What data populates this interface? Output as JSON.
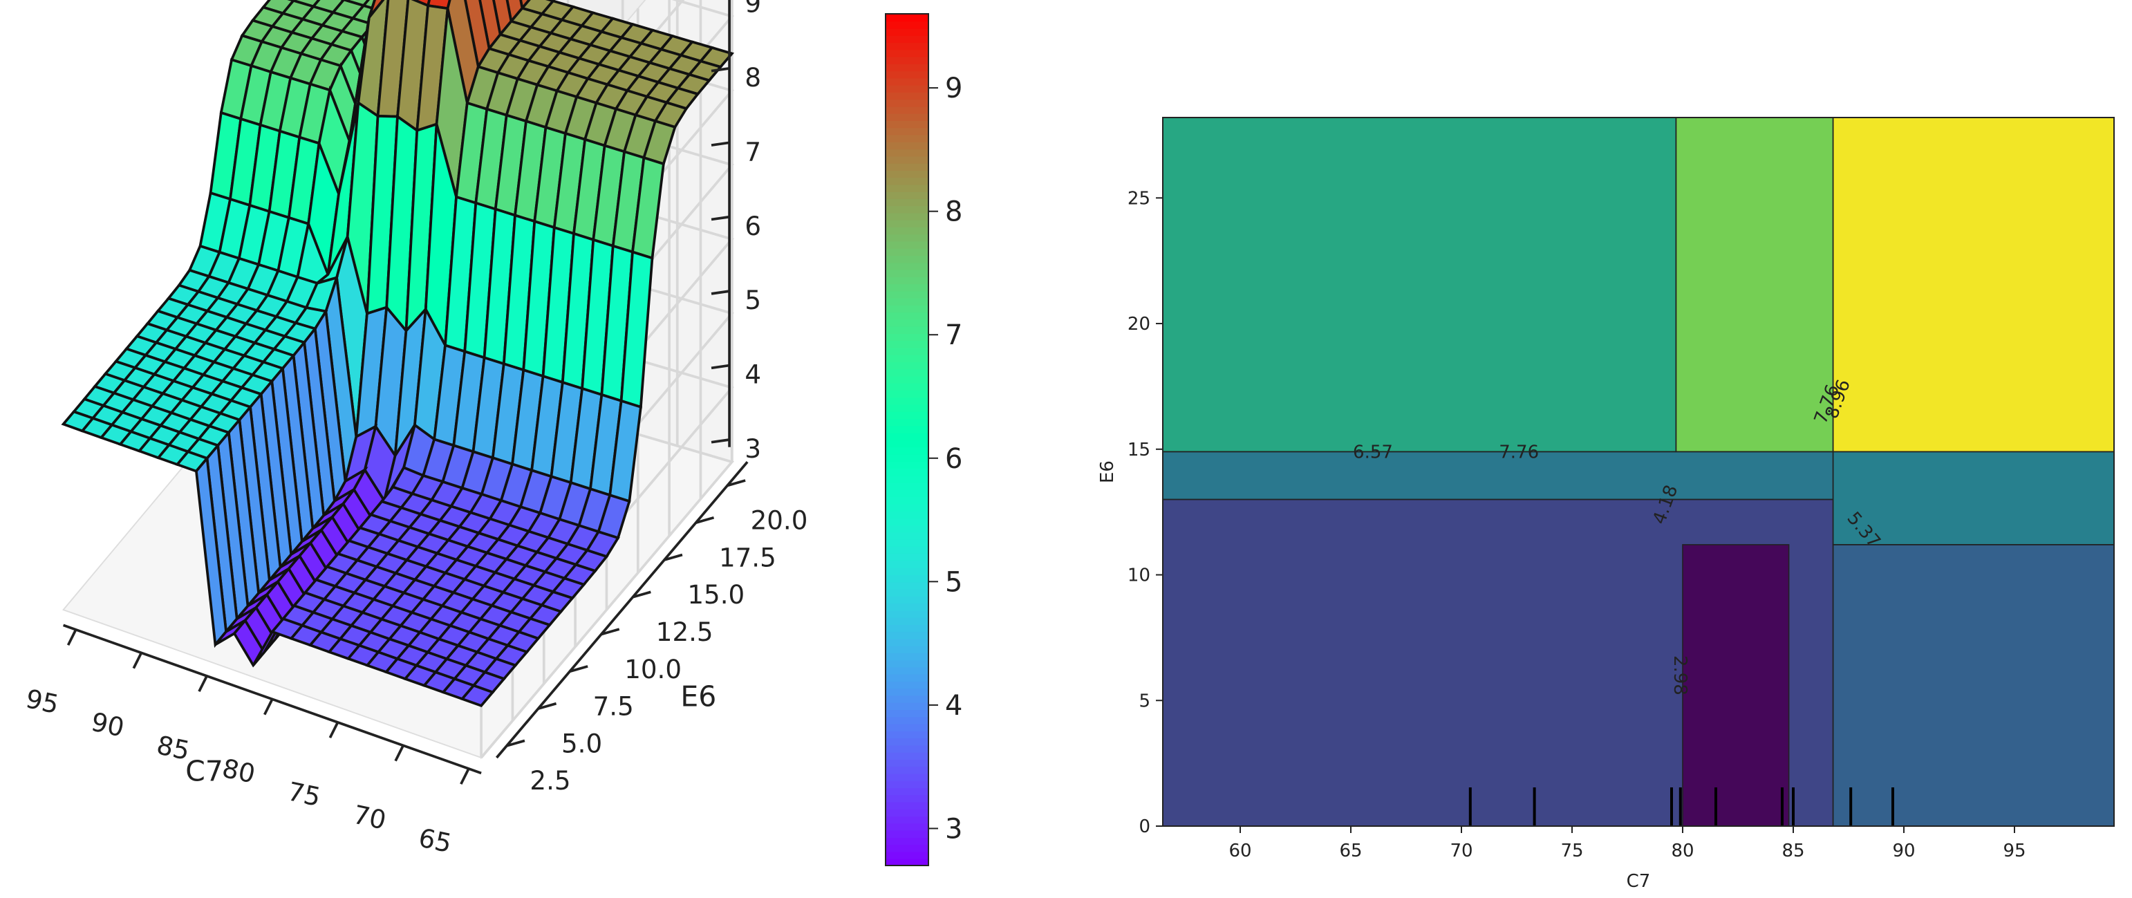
{
  "chart_data": [
    {
      "type": "surface3d",
      "title": "",
      "xlabel": "C7",
      "ylabel": "E6",
      "x_ticks": [
        "95",
        "90",
        "85",
        "80",
        "75",
        "70",
        "65"
      ],
      "y_ticks": [
        "2.5",
        "5.0",
        "7.5",
        "10.0",
        "12.5",
        "15.0",
        "17.5",
        "20.0"
      ],
      "z_ticks": [
        "3",
        "4",
        "5",
        "6",
        "7",
        "8",
        "9"
      ],
      "xlim": [
        63,
        97
      ],
      "ylim": [
        0,
        22
      ],
      "zlim": [
        2.7,
        9.6
      ],
      "colormap": "rainbow",
      "colorbar": {
        "min": 2.7,
        "max": 9.6,
        "ticks": [
          "3",
          "4",
          "5",
          "6",
          "7",
          "8",
          "9"
        ]
      },
      "grid": true,
      "surface_summary": {
        "low_e6_high_c7": 5.2,
        "low_e6_mid_c7": 2.9,
        "low_e6_low_c7": 3.4,
        "high_e6_high_c7": 7.5,
        "high_e6_mid_c7": 9.6,
        "high_e6_low_c7": 8.1
      }
    },
    {
      "type": "contour",
      "title": "",
      "xlabel": "C7",
      "ylabel": "E6",
      "x_ticks": [
        "60",
        "65",
        "70",
        "75",
        "80",
        "85",
        "90",
        "95"
      ],
      "y_ticks": [
        "0",
        "5",
        "10",
        "15",
        "20",
        "25"
      ],
      "xlim": [
        56.5,
        99.5
      ],
      "ylim": [
        0,
        28.2
      ],
      "colormap": "viridis",
      "contour_labels": [
        "6.57",
        "7.76",
        "4.18",
        "5.37",
        "2.98",
        "7.76",
        "8.96"
      ],
      "regions": [
        {
          "c7": [
            56.5,
            79.7
          ],
          "e6": [
            14.9,
            28.2
          ],
          "value": 6.6
        },
        {
          "c7": [
            79.7,
            86.8
          ],
          "e6": [
            14.9,
            28.2
          ],
          "value": 7.8
        },
        {
          "c7": [
            86.8,
            99.5
          ],
          "e6": [
            14.9,
            28.2
          ],
          "value": 9.0
        },
        {
          "c7": [
            56.5,
            86.8
          ],
          "e6": [
            13.0,
            14.9
          ],
          "value": 5.4
        },
        {
          "c7": [
            86.8,
            99.5
          ],
          "e6": [
            11.2,
            14.9
          ],
          "value": 5.6
        },
        {
          "c7": [
            56.5,
            86.8
          ],
          "e6": [
            0,
            13.0
          ],
          "value": 4.2
        },
        {
          "c7": [
            80.0,
            84.8
          ],
          "e6": [
            0,
            11.2
          ],
          "value": 3.0
        },
        {
          "c7": [
            86.8,
            99.5
          ],
          "e6": [
            0,
            11.2
          ],
          "value": 4.8
        }
      ],
      "rug_x": [
        70.4,
        73.3,
        79.5,
        79.9,
        81.5,
        84.5,
        85.0,
        87.6,
        89.5
      ]
    }
  ]
}
